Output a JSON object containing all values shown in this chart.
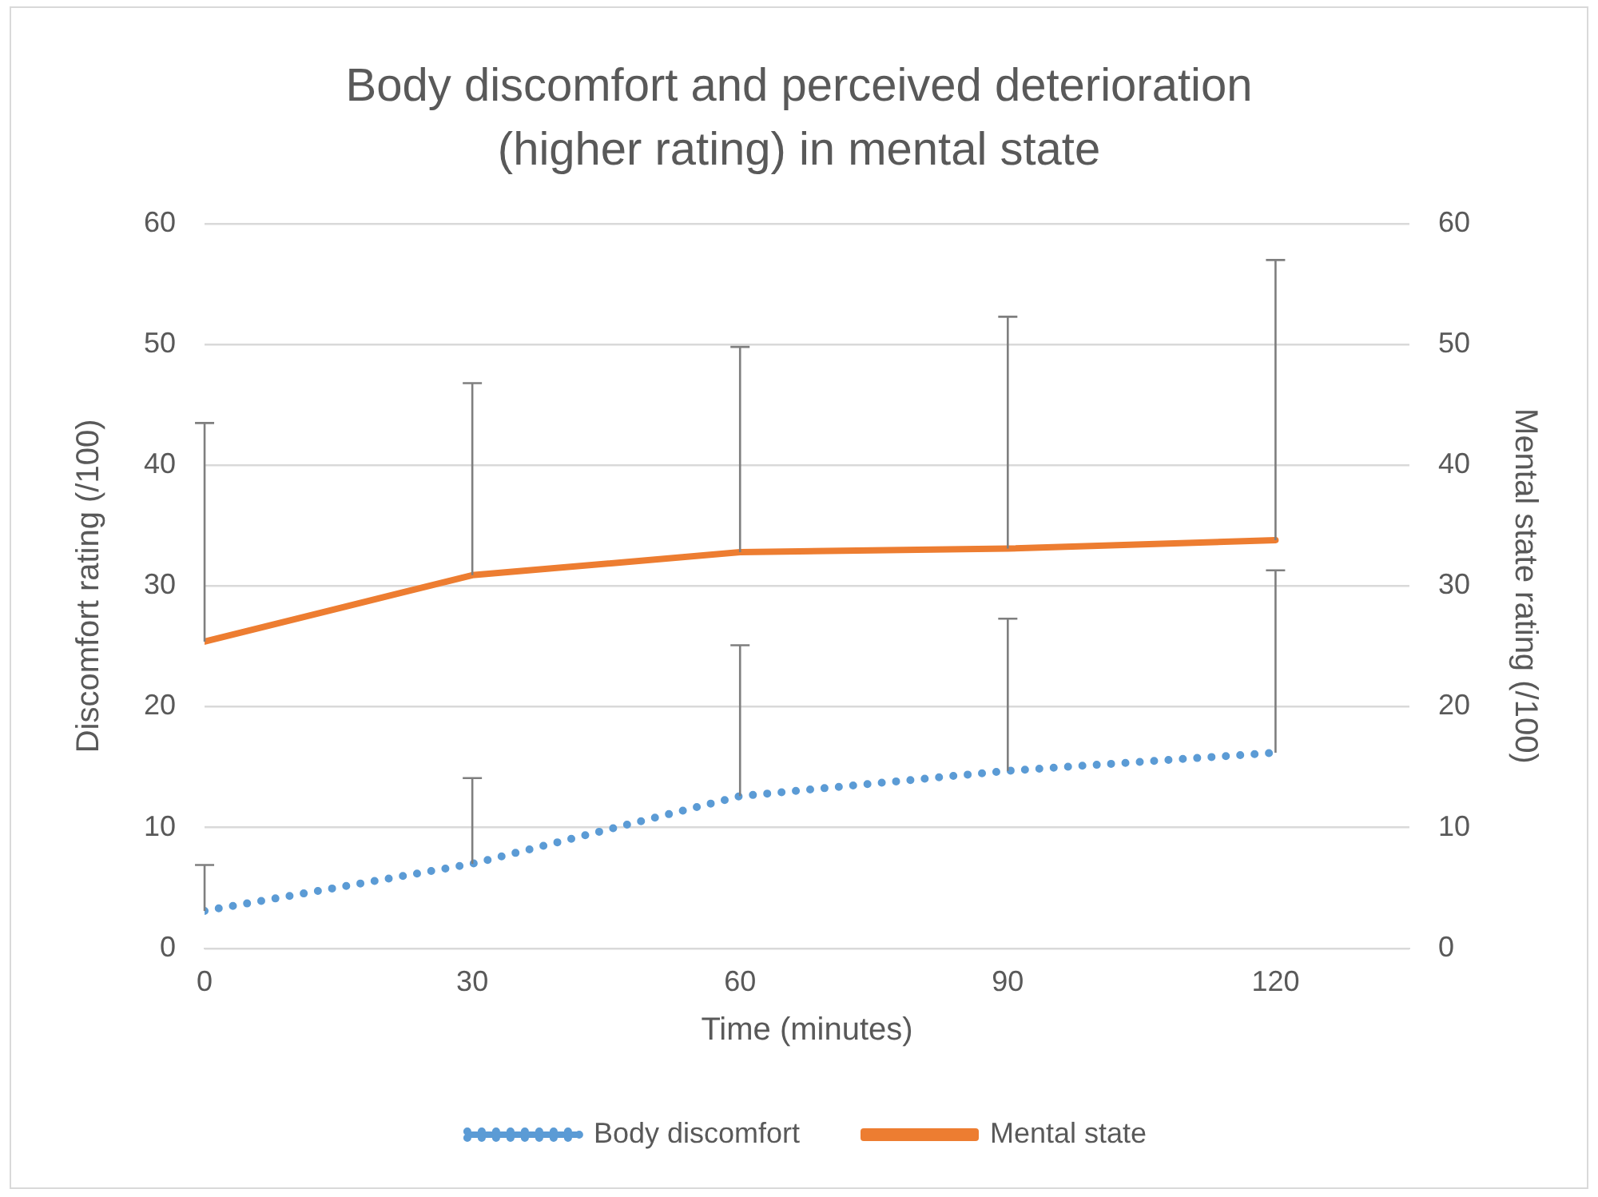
{
  "chart_data": {
    "type": "line",
    "title": "Body discomfort and perceived deterioration (higher rating) in mental state",
    "xlabel": "Time (minutes)",
    "ylabel": "Discomfort rating (/100)",
    "y2label": "Mental state rating (/100)",
    "x": [
      0,
      30,
      60,
      90,
      120
    ],
    "xlim": [
      0,
      135
    ],
    "xticks": [
      0,
      30,
      60,
      90,
      120
    ],
    "ylim": [
      0,
      60
    ],
    "yticks": [
      0,
      10,
      20,
      30,
      40,
      50,
      60
    ],
    "y2lim": [
      0,
      60
    ],
    "y2ticks": [
      0,
      10,
      20,
      30,
      40,
      50,
      60
    ],
    "series": [
      {
        "name": "Body discomfort",
        "color": "#5b9bd5",
        "line_style": "dotted",
        "values": [
          3.1,
          7.0,
          12.6,
          14.7,
          16.2
        ],
        "errors": [
          [
            3.1,
            6.9
          ],
          [
            7.0,
            14.1
          ],
          [
            12.6,
            25.1
          ],
          [
            14.7,
            27.3
          ],
          [
            16.2,
            31.3
          ]
        ]
      },
      {
        "name": "Mental state",
        "color": "#ed7d31",
        "line_style": "solid",
        "axis": "y2",
        "values": [
          25.4,
          30.9,
          32.8,
          33.1,
          33.8
        ],
        "errors": [
          [
            25.4,
            43.5
          ],
          [
            30.9,
            46.8
          ],
          [
            32.8,
            49.8
          ],
          [
            33.1,
            52.3
          ],
          [
            33.8,
            57.0
          ]
        ]
      }
    ],
    "grid": "y",
    "legend": "bottom",
    "marker": "none"
  }
}
